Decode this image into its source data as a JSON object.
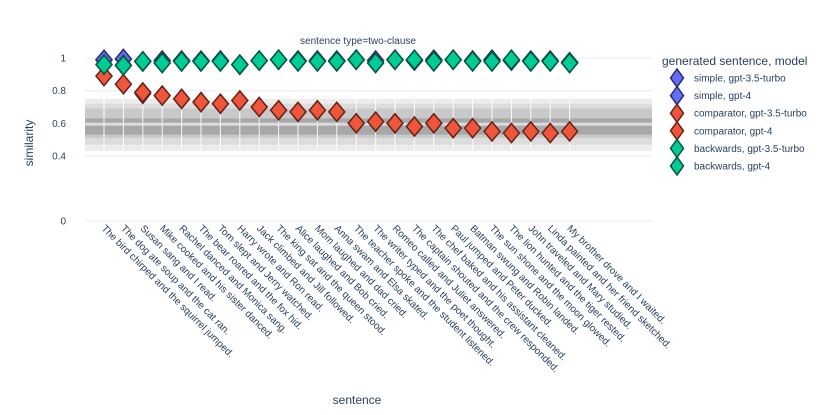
{
  "chart_data": {
    "type": "scatter",
    "title": "sentence type=two-clause",
    "xlabel": "sentence",
    "ylabel": "similarity",
    "ylim": [
      0,
      1.05
    ],
    "yticks": [
      0,
      0.4,
      0.6,
      0.8,
      1
    ],
    "grid": true,
    "legend": {
      "title": "generated sentence, model",
      "placement": "right"
    },
    "bands": [
      {
        "y0": 0.43,
        "y1": 0.75,
        "fill": "#ececec"
      },
      {
        "y0": 0.47,
        "y1": 0.72,
        "fill": "#dcdcdc"
      },
      {
        "y0": 0.51,
        "y1": 0.69,
        "fill": "#c9c9c9"
      },
      {
        "y0": 0.53,
        "y1": 0.63,
        "fill": "#a8a8a8"
      }
    ],
    "reference_line": 0.59,
    "categories": [
      "The bird chirped and the squirrel jumped.",
      "The dog ate soup and the cat ran.",
      "Susan sang and I read.",
      "Mike cooked and his sister danced.",
      "Rachel danced and Monica sang.",
      "The bear roared and the fox hid.",
      "Tom slept and Jerry watched.",
      "Harry wrote and Ron read.",
      "Jack climbed and Jill followed.",
      "The king sat and the queen stood.",
      "Alice laughed and Bob cried.",
      "Mom laughed and dad cried.",
      "Anna swam and Elsa skated.",
      "The teacher spoke and the student listened.",
      "The writer typed and the poet thought.",
      "Romeo called and Juliet answered.",
      "The captain shouted and the crew responded.",
      "The chef baked and his assistant cleaned.",
      "Paul jumped and Peter ducked.",
      "Batman swung and Robin landed.",
      "The sun shone and the moon glowed.",
      "The lion hunted and the tiger rested.",
      "John traveled and Mary studied.",
      "Linda painted and her friend sketched.",
      "My brother drove and I waited."
    ],
    "series": [
      {
        "name": "simple, gpt-3.5-turbo",
        "color": "#636efa",
        "values": [
          0.985,
          0.995,
          0.98,
          0.985,
          0.985,
          0.98,
          0.985,
          0.96,
          0.985,
          0.99,
          0.985,
          0.985,
          0.985,
          0.99,
          0.985,
          0.99,
          0.985,
          0.99,
          0.99,
          0.985,
          0.99,
          0.985,
          0.985,
          0.985,
          0.975
        ]
      },
      {
        "name": "simple, gpt-4",
        "color": "#636efa",
        "values": [
          0.99,
          0.995,
          0.98,
          0.985,
          0.985,
          0.985,
          0.985,
          0.96,
          0.985,
          0.99,
          0.985,
          0.985,
          0.985,
          0.99,
          0.985,
          0.99,
          0.985,
          0.99,
          0.99,
          0.985,
          0.99,
          0.985,
          0.985,
          0.985,
          0.975
        ]
      },
      {
        "name": "comparator, gpt-3.5-turbo",
        "color": "#ef553b",
        "values": [
          0.89,
          0.84,
          0.78,
          0.77,
          0.75,
          0.73,
          0.72,
          0.74,
          0.7,
          0.68,
          0.67,
          0.68,
          0.67,
          0.6,
          0.61,
          0.6,
          0.58,
          0.6,
          0.57,
          0.57,
          0.55,
          0.54,
          0.55,
          0.54,
          0.55
        ]
      },
      {
        "name": "comparator, gpt-4",
        "color": "#ef553b",
        "values": [
          0.89,
          0.84,
          0.79,
          0.77,
          0.75,
          0.73,
          0.72,
          0.74,
          0.7,
          0.68,
          0.67,
          0.68,
          0.67,
          0.6,
          0.61,
          0.6,
          0.58,
          0.6,
          0.57,
          0.57,
          0.55,
          0.54,
          0.55,
          0.54,
          0.55
        ]
      },
      {
        "name": "backwards, gpt-3.5-turbo",
        "color": "#00cc96",
        "values": [
          0.96,
          0.96,
          0.98,
          0.97,
          0.98,
          0.98,
          0.98,
          0.96,
          0.985,
          0.99,
          0.98,
          0.98,
          0.98,
          0.99,
          0.97,
          0.99,
          0.99,
          0.98,
          0.99,
          0.98,
          0.98,
          0.99,
          0.98,
          0.98,
          0.97
        ]
      },
      {
        "name": "backwards, gpt-4",
        "color": "#00cc96",
        "values": [
          0.96,
          0.955,
          0.98,
          0.97,
          0.98,
          0.98,
          0.98,
          0.96,
          0.985,
          0.99,
          0.98,
          0.98,
          0.98,
          0.99,
          0.97,
          0.99,
          0.99,
          0.98,
          0.99,
          0.98,
          0.98,
          0.99,
          0.98,
          0.98,
          0.97
        ]
      }
    ]
  }
}
